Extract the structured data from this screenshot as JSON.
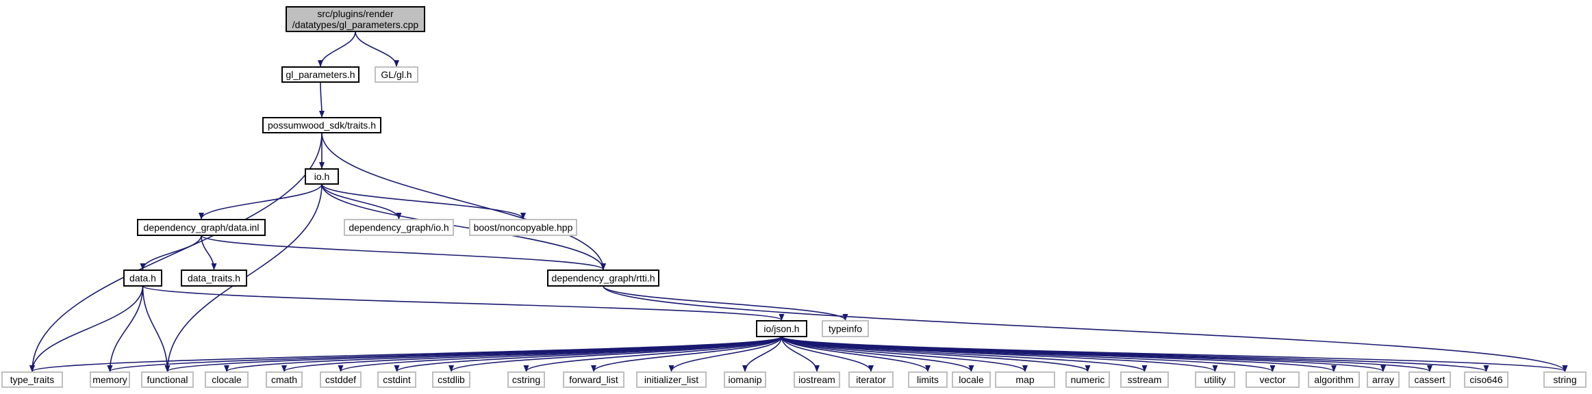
{
  "colors": {
    "edge": "#191970",
    "root_fill": "#bfbfbf",
    "internal_border": "#000000",
    "external_border": "#bfbfbf",
    "text": "#000000"
  },
  "nodes": [
    {
      "id": "root",
      "label": [
        "src/plugins/render",
        "/datatypes/gl_parameters.cpp"
      ],
      "kind": "root"
    },
    {
      "id": "glparams",
      "label": [
        "gl_parameters.h"
      ],
      "kind": "internal"
    },
    {
      "id": "glgl",
      "label": [
        "GL/gl.h"
      ],
      "kind": "external"
    },
    {
      "id": "traits",
      "label": [
        "possumwood_sdk/traits.h"
      ],
      "kind": "internal"
    },
    {
      "id": "ioh",
      "label": [
        "io.h"
      ],
      "kind": "internal"
    },
    {
      "id": "datainl",
      "label": [
        "dependency_graph/data.inl"
      ],
      "kind": "internal"
    },
    {
      "id": "dgio",
      "label": [
        "dependency_graph/io.h"
      ],
      "kind": "external"
    },
    {
      "id": "noncopyable",
      "label": [
        "boost/noncopyable.hpp"
      ],
      "kind": "external"
    },
    {
      "id": "datah",
      "label": [
        "data.h"
      ],
      "kind": "internal"
    },
    {
      "id": "datatraits",
      "label": [
        "data_traits.h"
      ],
      "kind": "internal"
    },
    {
      "id": "rtti",
      "label": [
        "dependency_graph/rtti.h"
      ],
      "kind": "internal"
    },
    {
      "id": "json",
      "label": [
        "io/json.h"
      ],
      "kind": "internal"
    },
    {
      "id": "typeinfo",
      "label": [
        "typeinfo"
      ],
      "kind": "external"
    },
    {
      "id": "type_traits",
      "label": [
        "type_traits"
      ],
      "kind": "external"
    },
    {
      "id": "memory",
      "label": [
        "memory"
      ],
      "kind": "external"
    },
    {
      "id": "functional",
      "label": [
        "functional"
      ],
      "kind": "external"
    },
    {
      "id": "clocale",
      "label": [
        "clocale"
      ],
      "kind": "external"
    },
    {
      "id": "cmath",
      "label": [
        "cmath"
      ],
      "kind": "external"
    },
    {
      "id": "cstddef",
      "label": [
        "cstddef"
      ],
      "kind": "external"
    },
    {
      "id": "cstdint",
      "label": [
        "cstdint"
      ],
      "kind": "external"
    },
    {
      "id": "cstdlib",
      "label": [
        "cstdlib"
      ],
      "kind": "external"
    },
    {
      "id": "cstring",
      "label": [
        "cstring"
      ],
      "kind": "external"
    },
    {
      "id": "forward_list",
      "label": [
        "forward_list"
      ],
      "kind": "external"
    },
    {
      "id": "initializer_list",
      "label": [
        "initializer_list"
      ],
      "kind": "external"
    },
    {
      "id": "iomanip",
      "label": [
        "iomanip"
      ],
      "kind": "external"
    },
    {
      "id": "iostream",
      "label": [
        "iostream"
      ],
      "kind": "external"
    },
    {
      "id": "iterator",
      "label": [
        "iterator"
      ],
      "kind": "external"
    },
    {
      "id": "limits",
      "label": [
        "limits"
      ],
      "kind": "external"
    },
    {
      "id": "locale",
      "label": [
        "locale"
      ],
      "kind": "external"
    },
    {
      "id": "map",
      "label": [
        "map"
      ],
      "kind": "external"
    },
    {
      "id": "numeric",
      "label": [
        "numeric"
      ],
      "kind": "external"
    },
    {
      "id": "sstream",
      "label": [
        "sstream"
      ],
      "kind": "external"
    },
    {
      "id": "utility",
      "label": [
        "utility"
      ],
      "kind": "external"
    },
    {
      "id": "vector",
      "label": [
        "vector"
      ],
      "kind": "external"
    },
    {
      "id": "algorithm",
      "label": [
        "algorithm"
      ],
      "kind": "external"
    },
    {
      "id": "array",
      "label": [
        "array"
      ],
      "kind": "external"
    },
    {
      "id": "cassert",
      "label": [
        "cassert"
      ],
      "kind": "external"
    },
    {
      "id": "ciso646",
      "label": [
        "ciso646"
      ],
      "kind": "external"
    },
    {
      "id": "string",
      "label": [
        "string"
      ],
      "kind": "external"
    }
  ],
  "edges": [
    {
      "from": "root",
      "to": "glparams"
    },
    {
      "from": "root",
      "to": "glgl"
    },
    {
      "from": "glparams",
      "to": "traits"
    },
    {
      "from": "traits",
      "to": "ioh"
    },
    {
      "from": "traits",
      "to": "type_traits"
    },
    {
      "from": "traits",
      "to": "rtti"
    },
    {
      "from": "ioh",
      "to": "datainl"
    },
    {
      "from": "ioh",
      "to": "dgio"
    },
    {
      "from": "ioh",
      "to": "noncopyable"
    },
    {
      "from": "ioh",
      "to": "functional"
    },
    {
      "from": "ioh",
      "to": "rtti"
    },
    {
      "from": "datainl",
      "to": "datah"
    },
    {
      "from": "datainl",
      "to": "datatraits"
    },
    {
      "from": "datainl",
      "to": "rtti"
    },
    {
      "from": "datah",
      "to": "type_traits"
    },
    {
      "from": "datah",
      "to": "memory"
    },
    {
      "from": "datah",
      "to": "functional"
    },
    {
      "from": "datah",
      "to": "json"
    },
    {
      "from": "rtti",
      "to": "typeinfo"
    },
    {
      "from": "rtti",
      "to": "string"
    },
    {
      "from": "json",
      "to": "type_traits"
    },
    {
      "from": "json",
      "to": "memory"
    },
    {
      "from": "json",
      "to": "functional"
    },
    {
      "from": "json",
      "to": "clocale"
    },
    {
      "from": "json",
      "to": "cmath"
    },
    {
      "from": "json",
      "to": "cstddef"
    },
    {
      "from": "json",
      "to": "cstdint"
    },
    {
      "from": "json",
      "to": "cstdlib"
    },
    {
      "from": "json",
      "to": "cstring"
    },
    {
      "from": "json",
      "to": "forward_list"
    },
    {
      "from": "json",
      "to": "initializer_list"
    },
    {
      "from": "json",
      "to": "iomanip"
    },
    {
      "from": "json",
      "to": "iostream"
    },
    {
      "from": "json",
      "to": "iterator"
    },
    {
      "from": "json",
      "to": "limits"
    },
    {
      "from": "json",
      "to": "locale"
    },
    {
      "from": "json",
      "to": "map"
    },
    {
      "from": "json",
      "to": "numeric"
    },
    {
      "from": "json",
      "to": "sstream"
    },
    {
      "from": "json",
      "to": "utility"
    },
    {
      "from": "json",
      "to": "vector"
    },
    {
      "from": "json",
      "to": "algorithm"
    },
    {
      "from": "json",
      "to": "array"
    },
    {
      "from": "json",
      "to": "cassert"
    },
    {
      "from": "json",
      "to": "ciso646"
    },
    {
      "from": "json",
      "to": "string"
    }
  ]
}
